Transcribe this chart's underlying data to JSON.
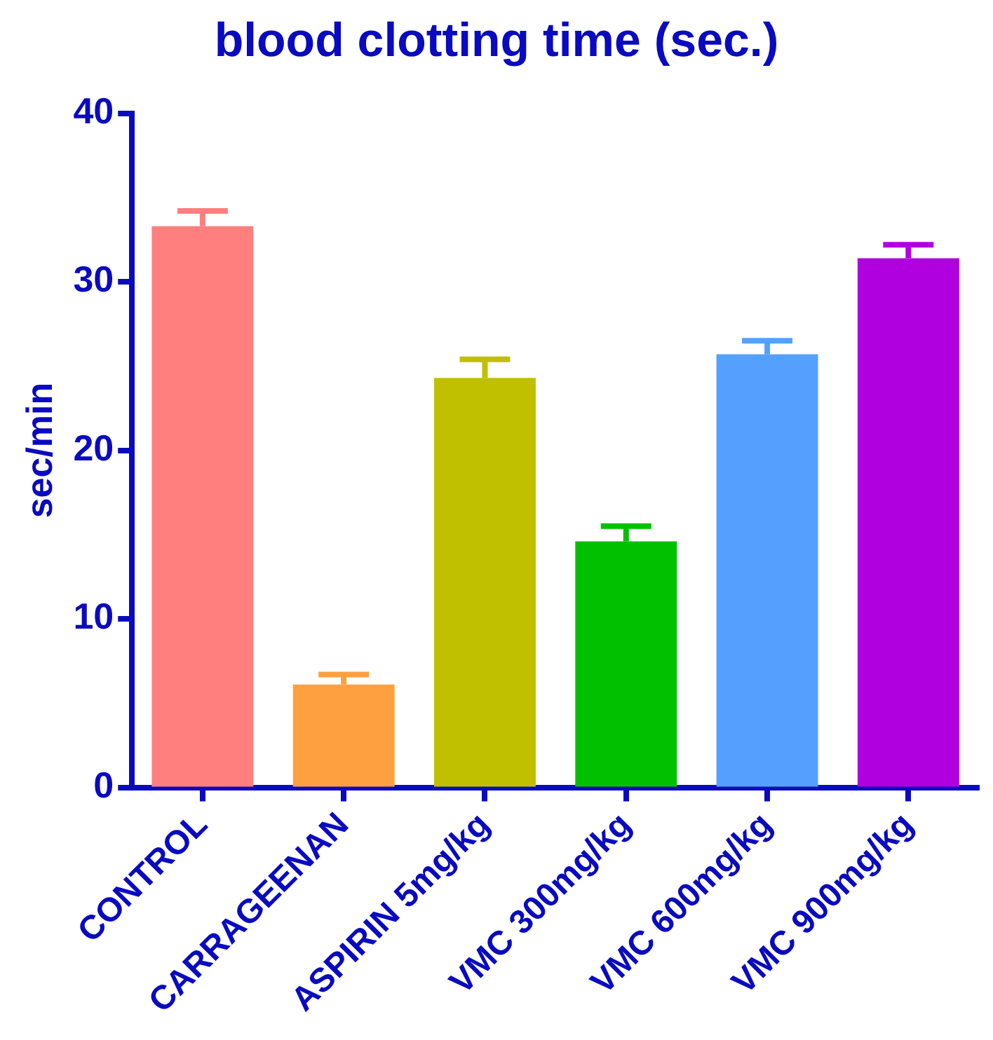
{
  "chart_data": {
    "type": "bar",
    "title": "blood clotting time (sec.)",
    "ylabel": "sec/min",
    "categories": [
      "CONTROL",
      "CARRAGEENAN",
      "ASPIRIN 5mg/kg",
      "VMC 300mg/kg",
      "VMC 600mg/kg",
      "VMC 900mg/kg"
    ],
    "values": [
      33.3,
      6.1,
      24.3,
      14.6,
      25.7,
      31.4
    ],
    "errors": [
      [
        33.3,
        34.2
      ],
      [
        6.1,
        6.7
      ],
      [
        24.3,
        25.4
      ],
      [
        14.6,
        15.5
      ],
      [
        25.7,
        26.5
      ],
      [
        31.4,
        32.2
      ]
    ],
    "colors": [
      "#ff7f7f",
      "#ffa040",
      "#c0c000",
      "#00c000",
      "#55a0ff",
      "#b000e0"
    ],
    "ylim": [
      0,
      40
    ],
    "yticks": [
      0,
      10,
      20,
      30,
      40
    ],
    "grid": false,
    "legend": false
  }
}
